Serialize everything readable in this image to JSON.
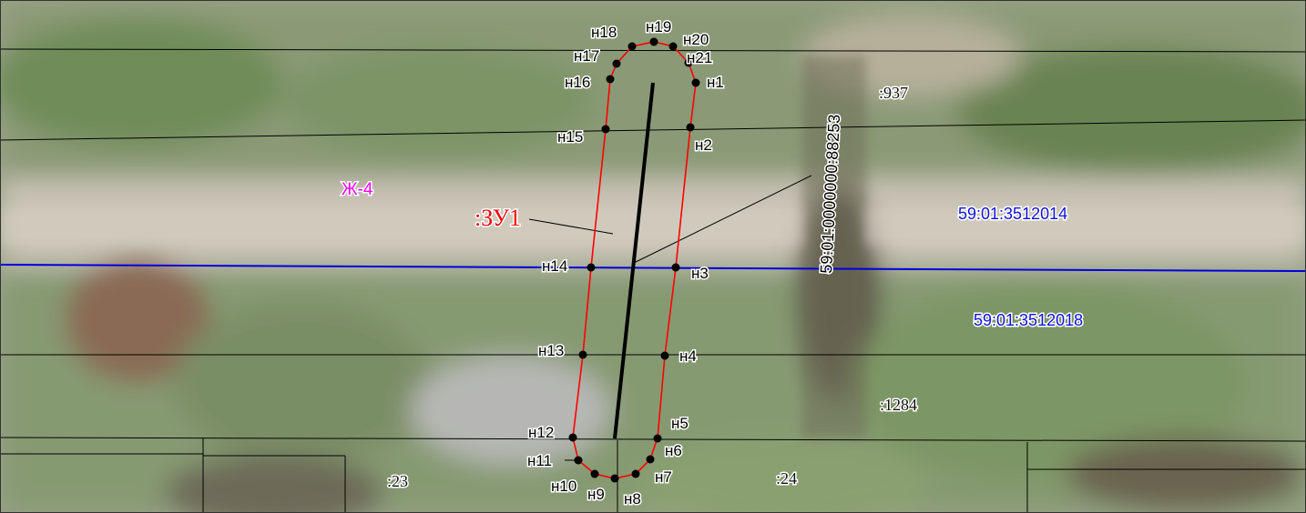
{
  "map": {
    "plot_label": ":ЗУ1",
    "zone_label": "Ж-4",
    "linear_object_label": "59:01:0000000:88253",
    "quarters": [
      "59:01:3512014",
      "59:01:3512018"
    ],
    "parcels": [
      ":937",
      ":1284",
      ":23",
      ":24"
    ],
    "points": [
      "н1",
      "н2",
      "н3",
      "н4",
      "н5",
      "н6",
      "н7",
      "н8",
      "н9",
      "н10",
      "н11",
      "н12",
      "н13",
      "н14",
      "н15",
      "н16",
      "н17",
      "н18",
      "н19",
      "н20",
      "н21"
    ],
    "colors": {
      "plot_boundary": "#ff0000",
      "quarter_boundary": "#0000dd",
      "parcel_lines": "#000000",
      "quarter_labels": "#1010e0",
      "zone_label": "#ff00ff",
      "plot_label": "#ff0000"
    }
  }
}
